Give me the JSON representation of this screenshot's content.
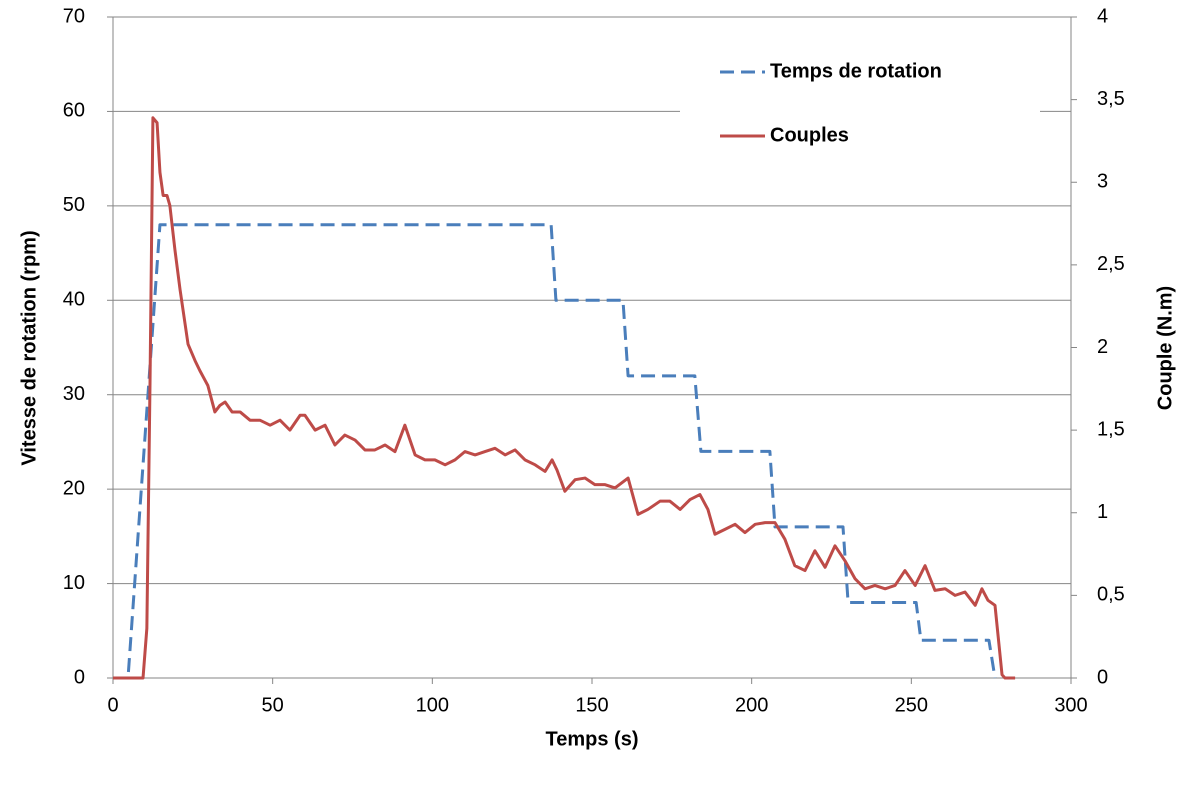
{
  "chart_data": {
    "type": "line",
    "xlabel": "Temps (s)",
    "ylabel": "Vitesse de rotation (rpm)",
    "y2label": "Couple  (N.m)",
    "xlim": [
      0,
      300
    ],
    "xticks": [
      0,
      50,
      100,
      150,
      200,
      250,
      300
    ],
    "ylim": [
      0,
      70
    ],
    "yticks": [
      0,
      10,
      20,
      30,
      40,
      50,
      60,
      70
    ],
    "y2lim": [
      0,
      4
    ],
    "y2ticks": [
      0,
      {
        "value": 0.5,
        "label": "0,5"
      },
      1,
      {
        "value": 1.5,
        "label": "1,5"
      },
      2,
      {
        "value": 2.5,
        "label": "2,5"
      },
      3,
      {
        "value": 3.5,
        "label": "3,5"
      },
      4
    ],
    "grid": true,
    "legend": "upper right",
    "series": [
      {
        "name": "Temps de rotation",
        "color": "#4a7ebb",
        "line_style": "dashed",
        "axis": "y",
        "x": [
          0,
          4.7,
          14.7,
          137.2,
          138.7,
          159.7,
          161.3,
          182.2,
          184.1,
          205.7,
          207.3,
          228.6,
          230.2,
          251.5,
          253,
          274.3,
          276.2
        ],
        "values": [
          0,
          0,
          48,
          48,
          40,
          40,
          32,
          32,
          24,
          24,
          16,
          16,
          8,
          8,
          4,
          4,
          0
        ]
      },
      {
        "name": "Couples",
        "color": "#be4b48",
        "line_style": "solid",
        "axis": "y2",
        "x": [
          0,
          9.4,
          10.6,
          11.6,
          12.5,
          13.8,
          14.7,
          15.7,
          16.9,
          17.8,
          19.4,
          21,
          23.5,
          25.7,
          27.2,
          29.7,
          31.9,
          33.5,
          35.1,
          37.3,
          39.8,
          42.9,
          46,
          49.2,
          52.3,
          55.4,
          58.6,
          60.1,
          63.3,
          66.4,
          69.5,
          72.6,
          75.8,
          78.9,
          82,
          85.2,
          88.3,
          91.4,
          94.6,
          97.7,
          100.8,
          104,
          107.1,
          110.2,
          113.4,
          116.5,
          119.6,
          122.8,
          125.9,
          129,
          132.2,
          135.3,
          137.5,
          139,
          141.5,
          144.7,
          147.8,
          150.9,
          154.1,
          157.2,
          161.3,
          164.4,
          167.5,
          171.3,
          174.4,
          177.6,
          180.7,
          183.8,
          186.3,
          188.5,
          191.7,
          194.8,
          197.9,
          201.1,
          204.2,
          207.3,
          210.4,
          213.5,
          216.7,
          219.8,
          223,
          226.1,
          229.2,
          232.4,
          235.5,
          238.6,
          241.8,
          244.9,
          248,
          251.2,
          254.3,
          257.4,
          260.6,
          263.7,
          266.8,
          270,
          272.1,
          274,
          276.2,
          278.4,
          279.3,
          282.5
        ],
        "values": [
          0,
          0,
          0.3,
          1.8,
          3.39,
          3.36,
          3.06,
          2.92,
          2.92,
          2.86,
          2.59,
          2.35,
          2.02,
          1.92,
          1.86,
          1.77,
          1.61,
          1.65,
          1.67,
          1.61,
          1.61,
          1.56,
          1.56,
          1.53,
          1.56,
          1.5,
          1.59,
          1.59,
          1.5,
          1.53,
          1.41,
          1.47,
          1.44,
          1.38,
          1.38,
          1.41,
          1.37,
          1.53,
          1.35,
          1.32,
          1.32,
          1.29,
          1.32,
          1.37,
          1.35,
          1.37,
          1.39,
          1.35,
          1.38,
          1.32,
          1.29,
          1.25,
          1.32,
          1.26,
          1.13,
          1.2,
          1.21,
          1.17,
          1.17,
          1.15,
          1.21,
          0.99,
          1.02,
          1.07,
          1.07,
          1.02,
          1.08,
          1.11,
          1.02,
          0.87,
          0.9,
          0.93,
          0.88,
          0.93,
          0.94,
          0.94,
          0.84,
          0.68,
          0.65,
          0.77,
          0.67,
          0.8,
          0.71,
          0.6,
          0.54,
          0.56,
          0.54,
          0.56,
          0.65,
          0.56,
          0.68,
          0.53,
          0.54,
          0.5,
          0.52,
          0.44,
          0.54,
          0.47,
          0.44,
          0.02,
          0,
          0
        ]
      }
    ]
  }
}
